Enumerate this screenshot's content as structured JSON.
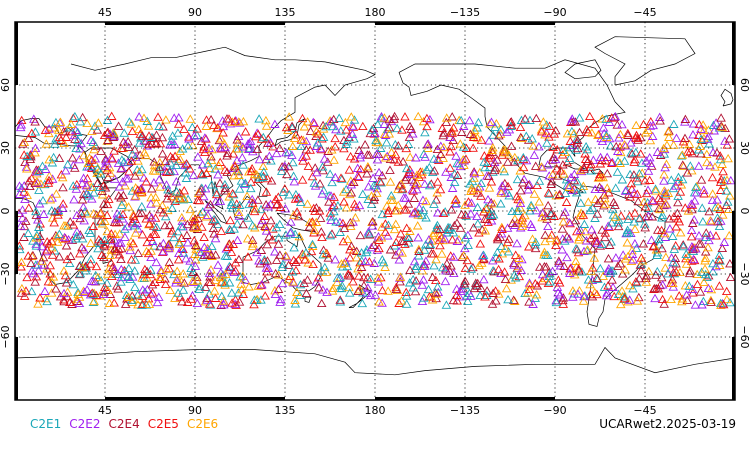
{
  "map": {
    "type": "scatter",
    "projection": "equirectangular",
    "center_longitude": 180,
    "x_range": [
      0,
      360
    ],
    "y_range": [
      -90,
      90
    ],
    "lon_ticks": [
      {
        "value": 45,
        "label": "45"
      },
      {
        "value": 90,
        "label": "90"
      },
      {
        "value": 135,
        "label": "135"
      },
      {
        "value": 180,
        "label": "180"
      },
      {
        "value": 225,
        "label": "−135"
      },
      {
        "value": 270,
        "label": "−90"
      },
      {
        "value": 315,
        "label": "−45"
      }
    ],
    "lat_ticks": [
      {
        "value": 60,
        "label": "60"
      },
      {
        "value": 30,
        "label": "30"
      },
      {
        "value": 0,
        "label": "0"
      },
      {
        "value": -30,
        "label": "−30"
      },
      {
        "value": -60,
        "label": "−60"
      }
    ],
    "grid": true,
    "grid_style": "dotted",
    "marker": "triangle",
    "observation_latitude_band": [
      -45,
      45
    ]
  },
  "legend": {
    "placement": "bottom-left",
    "items": [
      {
        "label": "C2E1",
        "color": "#1aa7b8"
      },
      {
        "label": "C2E2",
        "color": "#a020f0"
      },
      {
        "label": "C2E4",
        "color": "#b01030"
      },
      {
        "label": "C2E5",
        "color": "#f01010"
      },
      {
        "label": "C2E6",
        "color": "#ffa500"
      }
    ]
  },
  "stamp": "UCARwet2.2025-03-19"
}
